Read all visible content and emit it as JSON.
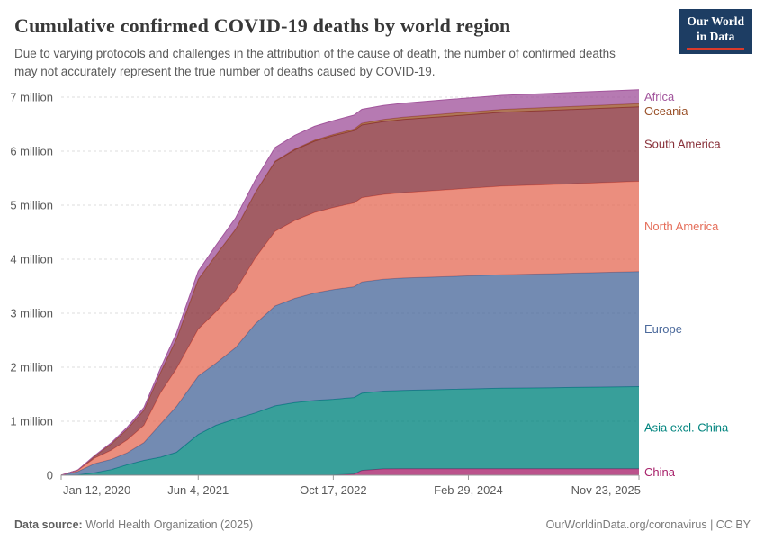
{
  "header": {
    "logo": {
      "line1": "Our World",
      "line2": "in Data",
      "bg_color": "#1d3d63",
      "accent_color": "#d93a2b"
    }
  },
  "footer": {
    "source_label": "Data source:",
    "source_value": "World Health Organization (2025)",
    "link_text": "OurWorldinData.org/coronavirus | CC BY"
  },
  "chart_data": {
    "type": "area",
    "stacked": true,
    "title": "Cumulative confirmed COVID-19 deaths by world region",
    "subtitle": "Due to varying protocols and challenges in the attribution of the cause of death, the number of confirmed deaths may not accurately represent the true number of deaths caused by COVID-19.",
    "xlabel": "",
    "ylabel": "",
    "x_unit": "decimal year",
    "y_unit": "deaths",
    "ylim": [
      0,
      7
    ],
    "grid": "horizontal-dashed",
    "legend_position": "right",
    "x_years": [
      2020.03,
      2020.2,
      2020.37,
      2020.54,
      2020.7,
      2020.87,
      2021.04,
      2021.2,
      2021.42,
      2021.6,
      2021.8,
      2022.0,
      2022.2,
      2022.4,
      2022.6,
      2022.79,
      2023.0,
      2023.08,
      2023.3,
      2023.5,
      2024.0,
      2024.5,
      2025.0,
      2025.89
    ],
    "x_ticks": [
      {
        "v": 2020.03,
        "label": "Jan 12, 2020"
      },
      {
        "v": 2021.42,
        "label": "Jun 4, 2021"
      },
      {
        "v": 2022.79,
        "label": "Oct 17, 2022"
      },
      {
        "v": 2024.16,
        "label": "Feb 29, 2024"
      },
      {
        "v": 2025.89,
        "label": "Nov 23, 2025"
      }
    ],
    "y_ticks": [
      {
        "v": 0,
        "label": "0"
      },
      {
        "v": 1,
        "label": "1 million"
      },
      {
        "v": 2,
        "label": "2 million"
      },
      {
        "v": 3,
        "label": "3 million"
      },
      {
        "v": 4,
        "label": "4 million"
      },
      {
        "v": 5,
        "label": "5 million"
      },
      {
        "v": 6,
        "label": "6 million"
      },
      {
        "v": 7,
        "label": "7 million"
      }
    ],
    "series_note": "values are cumulative deaths in millions, listed bottom-to-top of the stack",
    "series": [
      {
        "name": "China",
        "color": "#A8226B",
        "values": [
          0,
          0.003,
          0.0046,
          0.0047,
          0.0047,
          0.0048,
          0.0048,
          0.0048,
          0.0049,
          0.0049,
          0.005,
          0.005,
          0.0055,
          0.0057,
          0.0058,
          0.006,
          0.02,
          0.09,
          0.119,
          0.121,
          0.122,
          0.122,
          0.122,
          0.122
        ]
      },
      {
        "name": "Asia excl. China",
        "color": "#00847E",
        "values": [
          0,
          0.005,
          0.04,
          0.1,
          0.19,
          0.27,
          0.33,
          0.42,
          0.75,
          0.92,
          1.04,
          1.15,
          1.28,
          1.34,
          1.38,
          1.4,
          1.42,
          1.43,
          1.44,
          1.45,
          1.47,
          1.49,
          1.5,
          1.52
        ]
      },
      {
        "name": "Europe",
        "color": "#4C6A9C",
        "values": [
          0,
          0.06,
          0.17,
          0.19,
          0.22,
          0.33,
          0.62,
          0.85,
          1.08,
          1.15,
          1.32,
          1.65,
          1.85,
          1.93,
          1.99,
          2.03,
          2.05,
          2.06,
          2.07,
          2.08,
          2.09,
          2.1,
          2.11,
          2.13
        ]
      },
      {
        "name": "North America",
        "color": "#E56E5A",
        "values": [
          0,
          0.025,
          0.1,
          0.17,
          0.24,
          0.32,
          0.58,
          0.7,
          0.87,
          0.95,
          1.06,
          1.22,
          1.38,
          1.44,
          1.49,
          1.52,
          1.55,
          1.56,
          1.57,
          1.58,
          1.61,
          1.64,
          1.65,
          1.67
        ]
      },
      {
        "name": "South America",
        "color": "#883039",
        "values": [
          0,
          0.003,
          0.04,
          0.12,
          0.2,
          0.28,
          0.38,
          0.55,
          0.92,
          1.05,
          1.13,
          1.21,
          1.29,
          1.31,
          1.32,
          1.33,
          1.34,
          1.345,
          1.35,
          1.355,
          1.36,
          1.37,
          1.375,
          1.38
        ]
      },
      {
        "name": "Oceania",
        "color": "#9A5129",
        "values": [
          0,
          0.0005,
          0.001,
          0.001,
          0.001,
          0.001,
          0.001,
          0.001,
          0.0012,
          0.0015,
          0.002,
          0.004,
          0.009,
          0.013,
          0.018,
          0.022,
          0.028,
          0.032,
          0.038,
          0.042,
          0.049,
          0.052,
          0.054,
          0.056
        ]
      },
      {
        "name": "Africa",
        "color": "#A2559C",
        "values": [
          0,
          0.002,
          0.01,
          0.02,
          0.035,
          0.05,
          0.08,
          0.11,
          0.15,
          0.18,
          0.21,
          0.23,
          0.252,
          0.255,
          0.256,
          0.257,
          0.258,
          0.2585,
          0.259,
          0.2595,
          0.26,
          0.26,
          0.26,
          0.26
        ]
      }
    ]
  }
}
